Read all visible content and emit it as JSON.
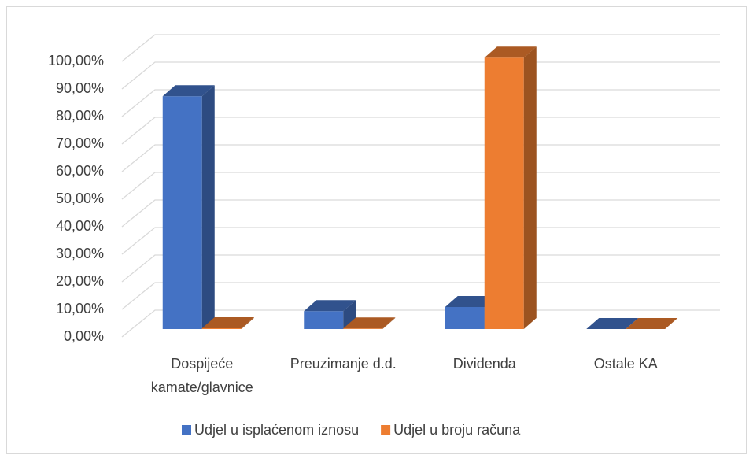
{
  "chart_data": {
    "type": "bar3d",
    "categories": [
      "Dospijeće kamate/glavnice",
      "Preuzimanje d.d.",
      "Dividenda",
      "Ostale KA"
    ],
    "series": [
      {
        "name": "Udjel u isplaćenom iznosu",
        "color": "#4472c4",
        "values": [
          84.5,
          6.5,
          8,
          0
        ]
      },
      {
        "name": "Udjel u broju računa",
        "color": "#ed7d31",
        "values": [
          0.3,
          0.2,
          98.5,
          0
        ]
      }
    ],
    "ylim": [
      0,
      100
    ],
    "yticks": [
      {
        "value": 0,
        "label": "0,00%"
      },
      {
        "value": 10,
        "label": "10,00%"
      },
      {
        "value": 20,
        "label": "20,00%"
      },
      {
        "value": 30,
        "label": "30,00%"
      },
      {
        "value": 40,
        "label": "40,00%"
      },
      {
        "value": 50,
        "label": "50,00%"
      },
      {
        "value": 60,
        "label": "60,00%"
      },
      {
        "value": 70,
        "label": "70,00%"
      },
      {
        "value": 80,
        "label": "80,00%"
      },
      {
        "value": 90,
        "label": "90,00%"
      },
      {
        "value": 100,
        "label": "100,00%"
      }
    ],
    "grid": true,
    "legend": "bottom"
  }
}
